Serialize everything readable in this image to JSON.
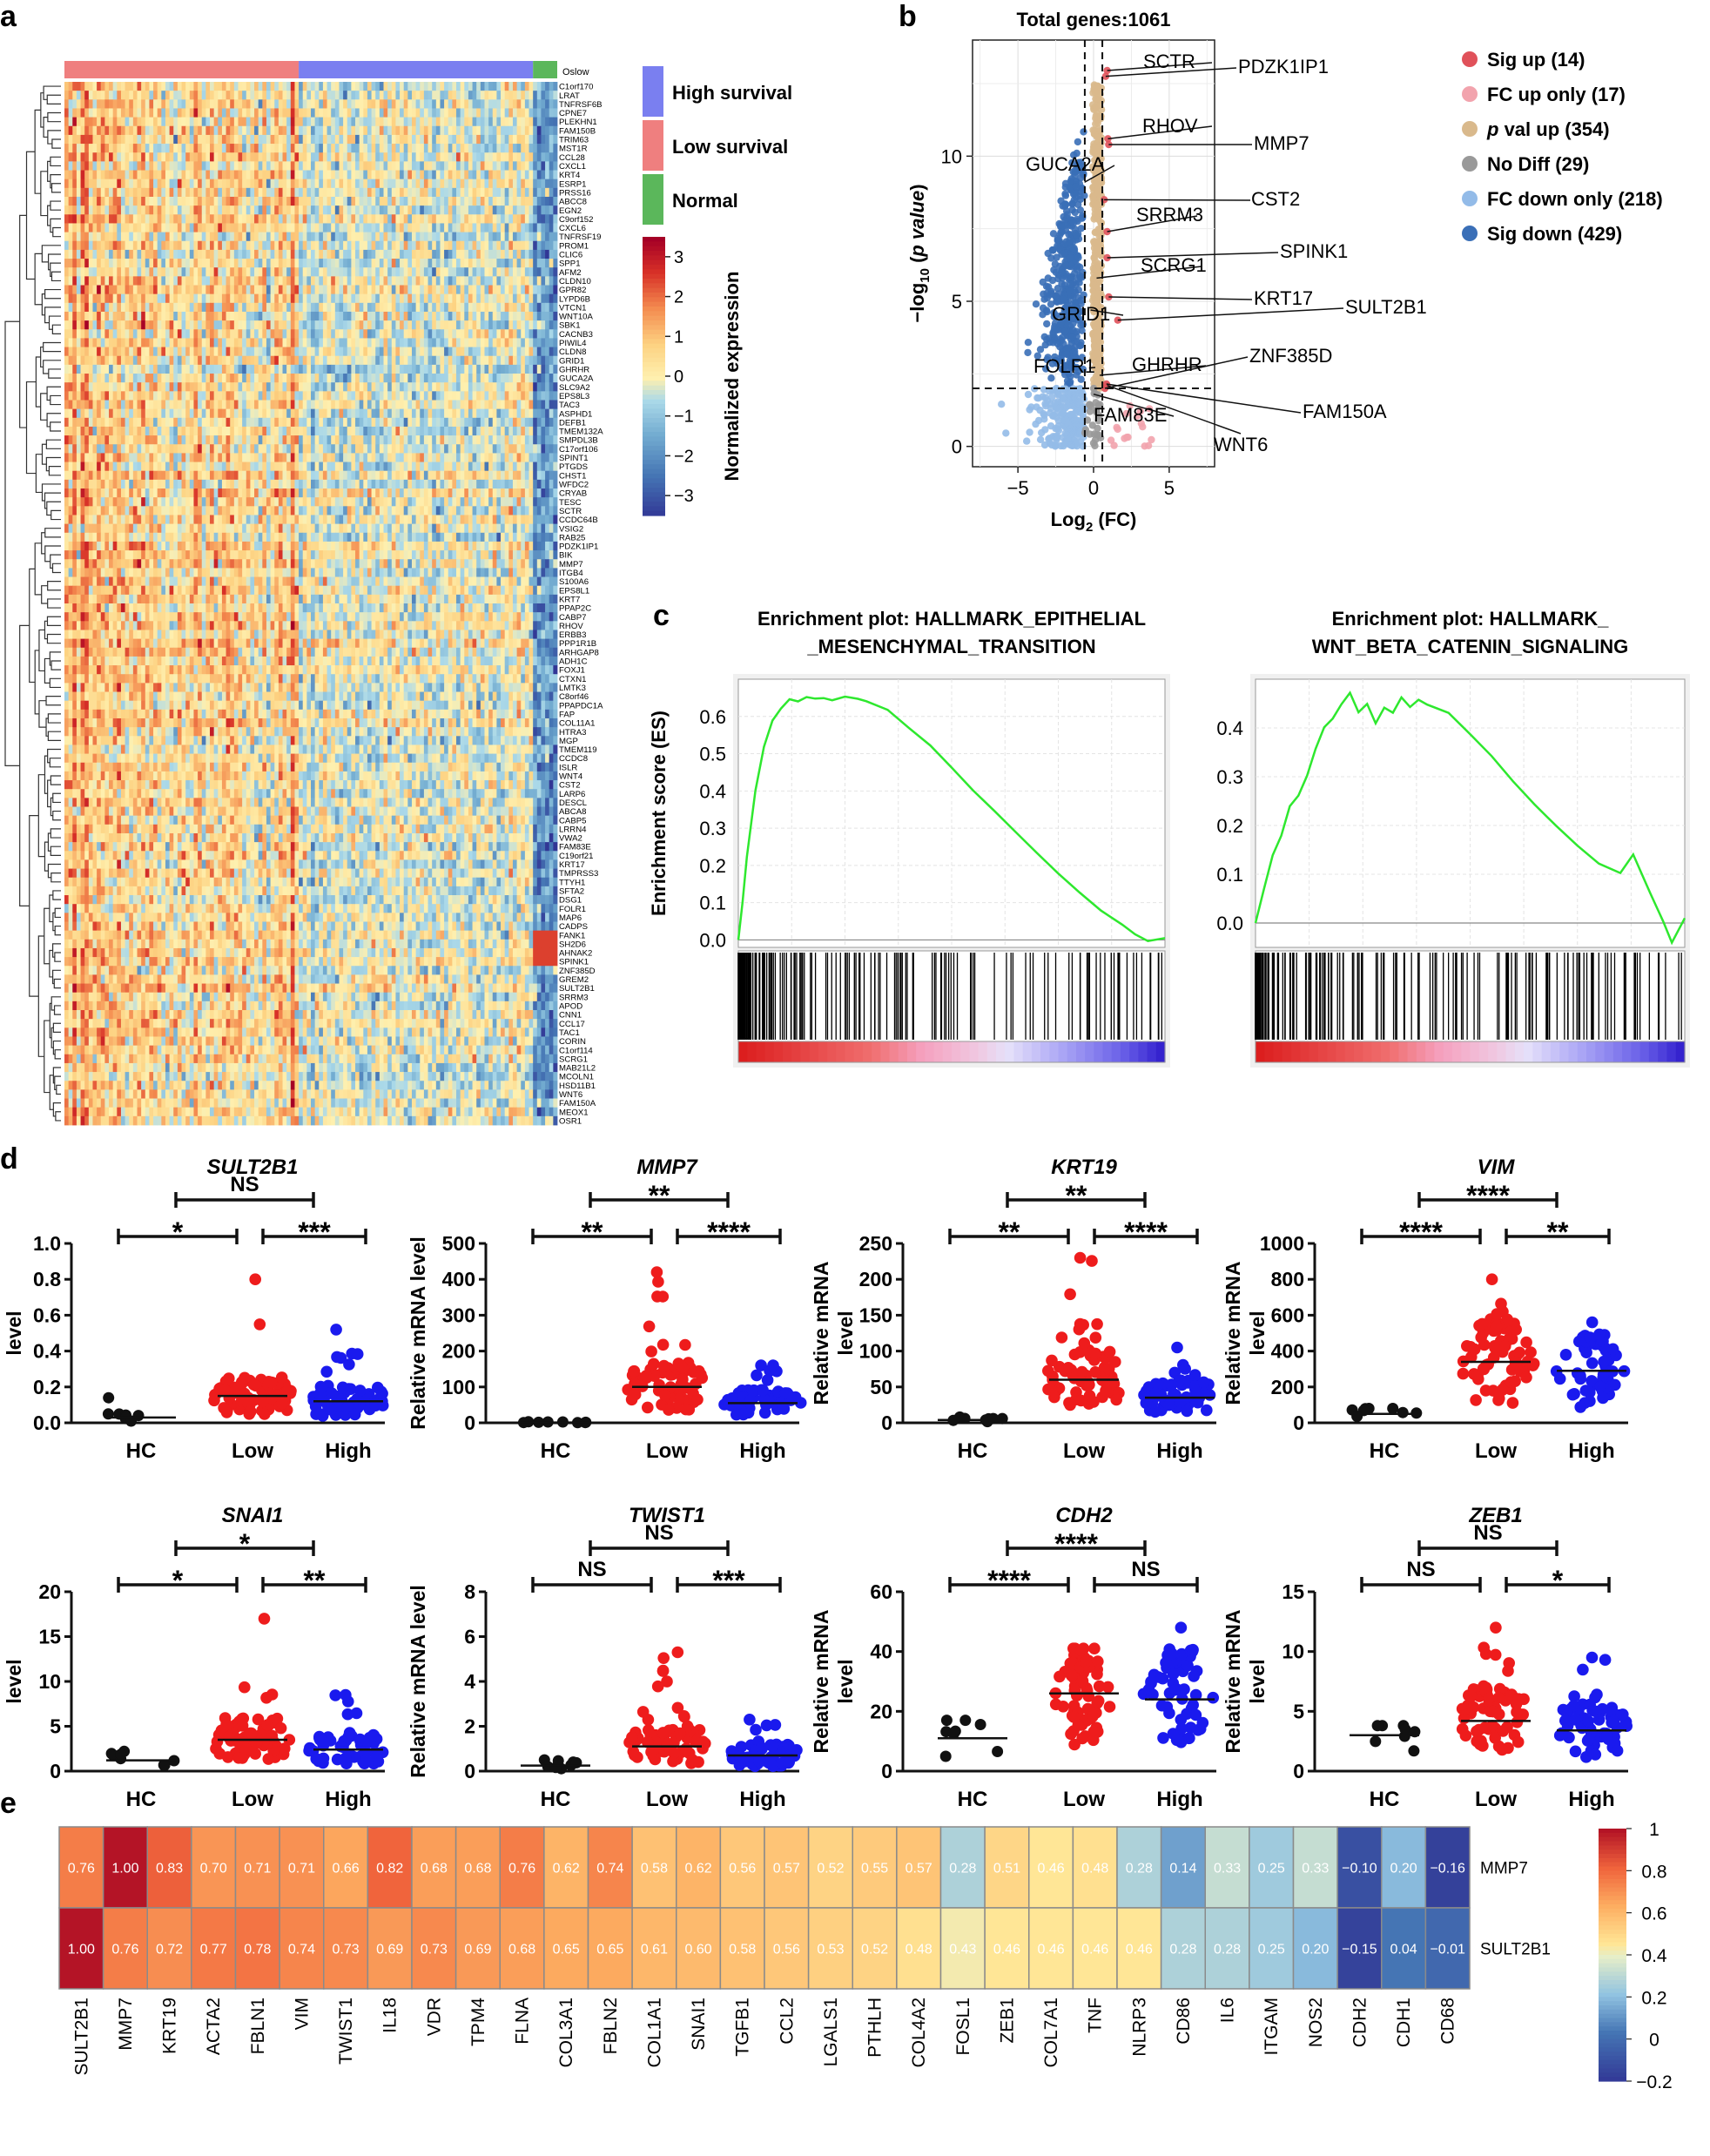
{
  "panel_labels": {
    "a": "a",
    "b": "b",
    "c": "c",
    "d": "d",
    "e": "e"
  },
  "colors": {
    "high_survival": "#7a7ff0",
    "low_survival": "#ef7f7f",
    "normal": "#5bb75b",
    "sig_up": "#e0515a",
    "fc_up_only": "#f2a3ad",
    "pval_up": "#d9b98c",
    "no_diff": "#999999",
    "fc_down_only": "#93bbe8",
    "sig_down": "#3a6fb7",
    "gsea_line": "#2ee82e",
    "dot_hc": "#111111",
    "dot_low": "#ee1c1c",
    "dot_high": "#1a1aee"
  },
  "chart_data": [
    {
      "id": "heatmap_a",
      "type": "heatmap",
      "annotation_row_label": "Oslow",
      "legend_groups": [
        "High survival",
        "Low survival",
        "Normal"
      ],
      "colorbar": {
        "title": "Normalized expression",
        "ticks": [
          3,
          2,
          1,
          0,
          -1,
          -2,
          -3
        ]
      },
      "groups_columns": {
        "low": 58,
        "high": 58,
        "normal": 6
      },
      "genes": [
        "C1orf170",
        "LRAT",
        "TNFRSF6B",
        "CPNE7",
        "PLEKHN1",
        "FAM150B",
        "TRIM63",
        "MST1R",
        "CCL28",
        "CXCL1",
        "KRT4",
        "ESRP1",
        "PRSS16",
        "ABCC8",
        "EGN2",
        "C9orf152",
        "CXCL6",
        "TNFRSF19",
        "PROM1",
        "CLIC6",
        "SPP1",
        "AFM2",
        "CLDN10",
        "GPR82",
        "LYPD6B",
        "VTCN1",
        "WNT10A",
        "SBK1",
        "CACNB3",
        "PIWIL4",
        "CLDN8",
        "GRID1",
        "GHRHR",
        "GUCA2A",
        "SLC9A2",
        "EPS8L3",
        "TAC3",
        "ASPHD1",
        "DEFB1",
        "TMEM132A",
        "SMPDL3B",
        "C17orf106",
        "SPINT1",
        "PTGDS",
        "CHST1",
        "WFDC2",
        "CRYAB",
        "TESC",
        "SCTR",
        "CCDC64B",
        "VSIG2",
        "RAB25",
        "PDZK1IP1",
        "BIK",
        "MMP7",
        "ITGB4",
        "S100A6",
        "EPS8L1",
        "KRT7",
        "PPAP2C",
        "CABP7",
        "RHOV",
        "ERBB3",
        "PPP1R1B",
        "ARHGAP8",
        "ADH1C",
        "FOXJ1",
        "CTXN1",
        "LMTK3",
        "C8orf46",
        "PPAPDC1A",
        "FAP",
        "COL11A1",
        "HTRA3",
        "MGP",
        "TMEM119",
        "CCDC8",
        "ISLR",
        "WNT4",
        "CST2",
        "LARP6",
        "DESCL",
        "ABCA8",
        "CABP5",
        "LRRN4",
        "VWA2",
        "FAM83E",
        "C19orf21",
        "KRT17",
        "TMPRSS3",
        "TTYH1",
        "SFTA2",
        "DSG1",
        "FOLR1",
        "MAP6",
        "CADPS",
        "FANK1",
        "SH2D6",
        "AHNAK2",
        "SPINK1",
        "ZNF385D",
        "GREM2",
        "SULT2B1",
        "SRRM3",
        "APOD",
        "CNN1",
        "CCL17",
        "TAC1",
        "CORIN",
        "C1orf114",
        "SCRG1",
        "MAB21L2",
        "MCOLN1",
        "HSD11B1",
        "WNT6",
        "FAM150A",
        "MEOX1",
        "OSR1"
      ]
    },
    {
      "id": "volcano_b",
      "type": "scatter",
      "title": "Total genes:1061",
      "xlabel": "Log2 (FC)",
      "ylabel": "−log10 (p value)",
      "xlim": [
        -8,
        8
      ],
      "ylim": [
        -0.7,
        14
      ],
      "xticks": [
        -5,
        0,
        5
      ],
      "yticks": [
        0,
        5,
        10
      ],
      "fc_threshold": 0.58,
      "p_threshold": 2.0,
      "legend": [
        {
          "key": "sig_up",
          "label": "Sig up (14)"
        },
        {
          "key": "fc_up_only",
          "label": "FC up only (17)"
        },
        {
          "key": "pval_up",
          "label": "p val up (354)"
        },
        {
          "key": "no_diff",
          "label": "No Diff (29)"
        },
        {
          "key": "fc_down_only",
          "label": "FC down only (218)"
        },
        {
          "key": "sig_down",
          "label": "Sig down (429)"
        }
      ],
      "labeled_points": [
        {
          "label": "SCTR",
          "x": 0.9,
          "y": 12.95
        },
        {
          "label": "PDZK1IP1",
          "x": 0.8,
          "y": 12.75
        },
        {
          "label": "RHOV",
          "x": 0.95,
          "y": 10.6
        },
        {
          "label": "MMP7",
          "x": 1.0,
          "y": 10.4
        },
        {
          "label": "GUCA2A",
          "x": -0.6,
          "y": 9.1
        },
        {
          "label": "CST2",
          "x": 0.7,
          "y": 8.5
        },
        {
          "label": "SRRM3",
          "x": 0.9,
          "y": 7.4
        },
        {
          "label": "SPINK1",
          "x": 0.9,
          "y": 6.5
        },
        {
          "label": "SCRG1",
          "x": 0.2,
          "y": 5.8
        },
        {
          "label": "KRT17",
          "x": 1.0,
          "y": 5.15
        },
        {
          "label": "SULT2B1",
          "x": 1.6,
          "y": 4.35
        },
        {
          "label": "GRID1",
          "x": -0.2,
          "y": 4.7
        },
        {
          "label": "FOLR1",
          "x": -0.3,
          "y": 2.7
        },
        {
          "label": "GHRHR",
          "x": 0.4,
          "y": 2.45
        },
        {
          "label": "ZNF385D",
          "x": 0.75,
          "y": 2.0
        },
        {
          "label": "FAM83E",
          "x": 0.0,
          "y": 1.8
        },
        {
          "label": "FAM150A",
          "x": 0.85,
          "y": 2.15
        },
        {
          "label": "WNT6",
          "x": 0.9,
          "y": 2.1
        }
      ]
    },
    {
      "id": "gsea_emt",
      "type": "line",
      "title": "Enrichment plot: HALLMARK_EPITHELIAL _MESENCHYMAL_TRANSITION",
      "title_lines": [
        "Enrichment plot: HALLMARK_EPITHELIAL",
        "_MESENCHYMAL_TRANSITION"
      ],
      "ylabel": "Enrichment score (ES)",
      "yticks": [
        0.6,
        0.5,
        0.4,
        0.3,
        0.2,
        0.1,
        0.0
      ],
      "ylim": [
        -0.02,
        0.7
      ],
      "x": [
        0,
        0.01,
        0.02,
        0.04,
        0.06,
        0.08,
        0.1,
        0.12,
        0.14,
        0.16,
        0.18,
        0.2,
        0.22,
        0.25,
        0.28,
        0.3,
        0.35,
        0.4,
        0.45,
        0.5,
        0.55,
        0.6,
        0.65,
        0.7,
        0.75,
        0.8,
        0.85,
        0.9,
        0.93,
        0.96,
        1.0
      ],
      "y": [
        0.0,
        0.1,
        0.22,
        0.4,
        0.52,
        0.59,
        0.62,
        0.645,
        0.64,
        0.655,
        0.645,
        0.65,
        0.645,
        0.655,
        0.645,
        0.64,
        0.615,
        0.57,
        0.52,
        0.46,
        0.4,
        0.345,
        0.29,
        0.235,
        0.18,
        0.13,
        0.08,
        0.04,
        0.015,
        0.0,
        0.005
      ]
    },
    {
      "id": "gsea_wnt",
      "type": "line",
      "title": "Enrichment plot: HALLMARK_ WNT_BETA_CATENIN_SIGNALING",
      "title_lines": [
        "Enrichment plot: HALLMARK_",
        "WNT_BETA_CATENIN_SIGNALING"
      ],
      "yticks": [
        0.4,
        0.3,
        0.2,
        0.1,
        0.0
      ],
      "ylim": [
        -0.05,
        0.5
      ],
      "x": [
        0,
        0.02,
        0.04,
        0.06,
        0.08,
        0.1,
        0.12,
        0.14,
        0.16,
        0.18,
        0.2,
        0.22,
        0.24,
        0.26,
        0.28,
        0.3,
        0.32,
        0.34,
        0.36,
        0.38,
        0.4,
        0.45,
        0.5,
        0.55,
        0.6,
        0.65,
        0.7,
        0.75,
        0.8,
        0.85,
        0.88,
        0.92,
        0.95,
        0.97,
        1.0
      ],
      "y": [
        0.0,
        0.07,
        0.14,
        0.18,
        0.24,
        0.26,
        0.3,
        0.36,
        0.4,
        0.42,
        0.45,
        0.47,
        0.43,
        0.45,
        0.41,
        0.44,
        0.43,
        0.46,
        0.44,
        0.46,
        0.45,
        0.43,
        0.39,
        0.34,
        0.29,
        0.24,
        0.2,
        0.16,
        0.12,
        0.1,
        0.14,
        0.06,
        0.0,
        -0.04,
        0.01
      ]
    },
    {
      "id": "dot_sult2b1",
      "type": "scatter",
      "title": "SULT2B1",
      "ylabel": "Revitale mRNA level",
      "categories": [
        "HC",
        "Low",
        "High"
      ],
      "ylim": [
        0,
        1.0
      ],
      "yticks": [
        "0.0",
        "0.2",
        "0.4",
        "0.6",
        "0.8",
        "1.0"
      ],
      "means": [
        0.03,
        0.15,
        0.12
      ],
      "max": [
        0.14,
        0.8,
        0.52
      ],
      "n": [
        8,
        70,
        60
      ],
      "comparisons": [
        {
          "pair": "HC-Low",
          "sig": "*"
        },
        {
          "pair": "Low-High",
          "sig": "***"
        },
        {
          "pair": "HC-High",
          "sig": "NS"
        }
      ]
    },
    {
      "id": "dot_mmp7",
      "type": "scatter",
      "title": "MMP7",
      "ylabel": "Relative mRNA level",
      "categories": [
        "HC",
        "Low",
        "High"
      ],
      "ylim": [
        0,
        500
      ],
      "yticks": [
        "0",
        "100",
        "200",
        "300",
        "400",
        "500"
      ],
      "means": [
        1,
        100,
        55
      ],
      "max": [
        3,
        420,
        160
      ],
      "n": [
        8,
        70,
        60
      ],
      "comparisons": [
        {
          "pair": "HC-Low",
          "sig": "**"
        },
        {
          "pair": "Low-High",
          "sig": "****"
        },
        {
          "pair": "HC-High",
          "sig": "**"
        }
      ]
    },
    {
      "id": "dot_krt19",
      "type": "scatter",
      "title": "KRT19",
      "ylabel": "Relative mRNA level",
      "categories": [
        "HC",
        "Low",
        "High"
      ],
      "ylim": [
        0,
        250
      ],
      "yticks": [
        "0",
        "50",
        "100",
        "150",
        "200",
        "250"
      ],
      "means": [
        4,
        60,
        35
      ],
      "max": [
        8,
        230,
        105
      ],
      "n": [
        8,
        70,
        60
      ],
      "comparisons": [
        {
          "pair": "HC-Low",
          "sig": "**"
        },
        {
          "pair": "Low-High",
          "sig": "****"
        },
        {
          "pair": "HC-High",
          "sig": "**"
        }
      ]
    },
    {
      "id": "dot_vim",
      "type": "scatter",
      "title": "VIM",
      "ylabel": "Relative mRNA level",
      "categories": [
        "HC",
        "Low",
        "High"
      ],
      "ylim": [
        0,
        1000
      ],
      "yticks": [
        "0",
        "200",
        "400",
        "600",
        "800",
        "1000"
      ],
      "means": [
        50,
        340,
        290
      ],
      "max": [
        80,
        800,
        560
      ],
      "n": [
        8,
        70,
        60
      ],
      "comparisons": [
        {
          "pair": "HC-Low",
          "sig": "****"
        },
        {
          "pair": "Low-High",
          "sig": "**"
        },
        {
          "pair": "HC-High",
          "sig": "****"
        }
      ]
    },
    {
      "id": "dot_snai1",
      "type": "scatter",
      "title": "SNAI1",
      "ylabel": "Revitale mRNA level",
      "categories": [
        "HC",
        "Low",
        "High"
      ],
      "ylim": [
        0,
        20
      ],
      "yticks": [
        "0",
        "5",
        "10",
        "15",
        "20"
      ],
      "means": [
        1.2,
        3.5,
        2.4
      ],
      "max": [
        2.2,
        17,
        8.5
      ],
      "n": [
        8,
        70,
        60
      ],
      "comparisons": [
        {
          "pair": "HC-Low",
          "sig": "*"
        },
        {
          "pair": "Low-High",
          "sig": "**"
        },
        {
          "pair": "HC-High",
          "sig": "*"
        }
      ]
    },
    {
      "id": "dot_twist1",
      "type": "scatter",
      "title": "TWIST1",
      "ylabel": "Relative mRNA level",
      "categories": [
        "HC",
        "Low",
        "High"
      ],
      "ylim": [
        0,
        8
      ],
      "yticks": [
        "0",
        "2",
        "4",
        "6",
        "8"
      ],
      "means": [
        0.25,
        1.1,
        0.7
      ],
      "max": [
        0.5,
        5.3,
        2.3
      ],
      "n": [
        8,
        70,
        60
      ],
      "comparisons": [
        {
          "pair": "HC-Low",
          "sig": "NS"
        },
        {
          "pair": "Low-High",
          "sig": "***"
        },
        {
          "pair": "HC-High",
          "sig": "NS"
        }
      ]
    },
    {
      "id": "dot_cdh2",
      "type": "scatter",
      "title": "CDH2",
      "ylabel": "Relative mRNA level",
      "categories": [
        "HC",
        "Low",
        "High"
      ],
      "ylim": [
        0,
        60
      ],
      "yticks": [
        "0",
        "20",
        "40",
        "60"
      ],
      "means": [
        11,
        26,
        24
      ],
      "max": [
        17,
        41,
        48
      ],
      "n": [
        8,
        70,
        60
      ],
      "comparisons": [
        {
          "pair": "HC-Low",
          "sig": "****"
        },
        {
          "pair": "Low-High",
          "sig": "NS"
        },
        {
          "pair": "HC-High",
          "sig": "****"
        }
      ]
    },
    {
      "id": "dot_zeb1",
      "type": "scatter",
      "title": "ZEB1",
      "ylabel": "Relative mRNA level",
      "categories": [
        "HC",
        "Low",
        "High"
      ],
      "ylim": [
        0,
        15
      ],
      "yticks": [
        "0",
        "5",
        "10",
        "15"
      ],
      "means": [
        3,
        4.2,
        3.4
      ],
      "max": [
        3.8,
        12,
        9.5
      ],
      "n": [
        8,
        70,
        60
      ],
      "comparisons": [
        {
          "pair": "HC-Low",
          "sig": "NS"
        },
        {
          "pair": "Low-High",
          "sig": "*"
        },
        {
          "pair": "HC-High",
          "sig": "NS"
        }
      ]
    },
    {
      "id": "corr_e",
      "type": "heatmap",
      "columns": [
        "SULT2B1",
        "MMP7",
        "KRT19",
        "ACTA2",
        "FBLN1",
        "VIM",
        "TWIST1",
        "IL18",
        "VDR",
        "TPM4",
        "FLNA",
        "COL3A1",
        "FBLN2",
        "COL1A1",
        "SNAI1",
        "TGFB1",
        "CCL2",
        "LGALS1",
        "PTHLH",
        "COL4A2",
        "FOSL1",
        "ZEB1",
        "COL7A1",
        "TNF",
        "NLRP3",
        "CD86",
        "IL6",
        "ITGAM",
        "NOS2",
        "CDH2",
        "CDH1",
        "CD68"
      ],
      "rows": [
        {
          "name": "MMP7",
          "values": [
            0.76,
            1.0,
            0.83,
            0.7,
            0.71,
            0.71,
            0.66,
            0.82,
            0.68,
            0.68,
            0.76,
            0.62,
            0.74,
            0.58,
            0.62,
            0.56,
            0.57,
            0.52,
            0.55,
            0.57,
            0.28,
            0.51,
            0.46,
            0.48,
            0.28,
            0.14,
            0.33,
            0.25,
            0.33,
            -0.1,
            0.2,
            -0.16
          ]
        },
        {
          "name": "SULT2B1",
          "values": [
            1.0,
            0.76,
            0.72,
            0.77,
            0.78,
            0.74,
            0.73,
            0.69,
            0.73,
            0.69,
            0.68,
            0.65,
            0.65,
            0.61,
            0.6,
            0.58,
            0.56,
            0.53,
            0.52,
            0.48,
            0.43,
            0.46,
            0.46,
            0.46,
            0.46,
            0.28,
            0.28,
            0.25,
            0.2,
            -0.15,
            0.04,
            -0.01
          ]
        }
      ],
      "labels": [
        [
          "0.76",
          "1.00",
          "0.83",
          "0.70",
          "0.71",
          "0.71",
          "0.66",
          "0.82",
          "0.68",
          "0.68",
          "0.76",
          "0.62",
          "0.74",
          "0.58",
          "0.62",
          "0.56",
          "0.57",
          "0.52",
          "0.55",
          "0.57",
          "0.28",
          "0.51",
          "0.46",
          "0.48",
          "0.28",
          "0.14",
          "0.33",
          "0.25",
          "0.33",
          "−0.10",
          "0.20",
          "−0.16"
        ],
        [
          "1.00",
          "0.76",
          "0.72",
          "0.77",
          "0.78",
          "0.74",
          "0.73",
          "0.69",
          "0.73",
          "0.69",
          "0.68",
          "0.65",
          "0.65",
          "0.61",
          "0.60",
          "0.58",
          "0.56",
          "0.53",
          "0.52",
          "0.48",
          "0.43",
          "0.46",
          "0.46",
          "0.46",
          "0.46",
          "0.28",
          "0.28",
          "0.25",
          "0.20",
          "−0.15",
          "0.04",
          "−0.01"
        ]
      ],
      "colorbar": {
        "ticks": [
          "1",
          "0.8",
          "0.6",
          "0.4",
          "0.2",
          "0",
          "−0.2"
        ],
        "range": [
          -0.2,
          1.0
        ]
      }
    }
  ]
}
